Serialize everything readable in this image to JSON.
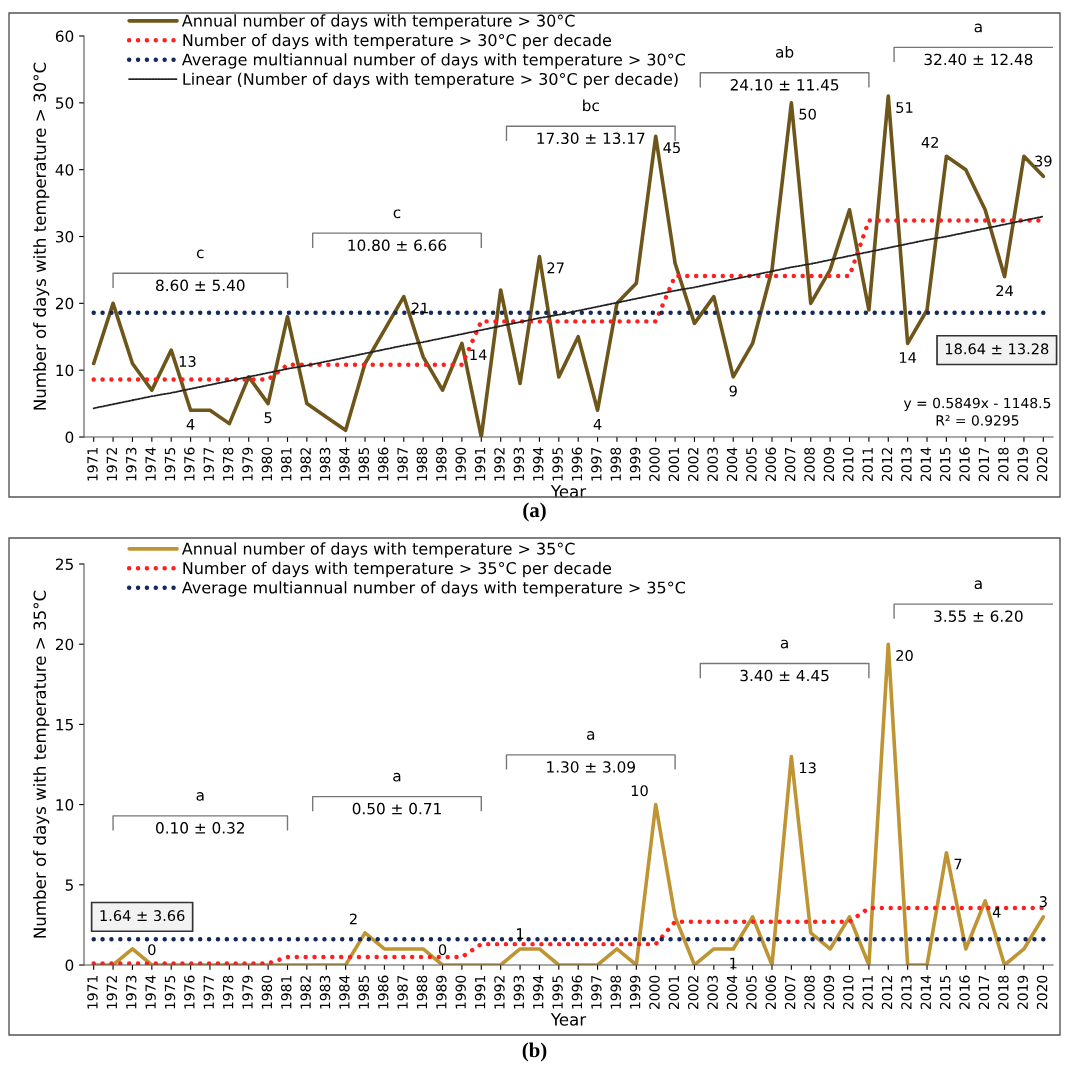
{
  "chart_data": [
    {
      "type": "line",
      "xlabel": "Year",
      "ylabel": "Number of days with temperature > 30°C",
      "ylim": [
        0,
        60
      ],
      "yticks": [
        0,
        10,
        20,
        30,
        40,
        50,
        60
      ],
      "legend": "top left",
      "grid": false,
      "marker": "none",
      "categories": [
        "1971",
        "1972",
        "1973",
        "1974",
        "1975",
        "1976",
        "1977",
        "1978",
        "1979",
        "1980",
        "1981",
        "1982",
        "1983",
        "1984",
        "1985",
        "1986",
        "1987",
        "1988",
        "1989",
        "1990",
        "1991",
        "1992",
        "1993",
        "1994",
        "1995",
        "1996",
        "1997",
        "1998",
        "1999",
        "2000",
        "2001",
        "2002",
        "2003",
        "2004",
        "2005",
        "2006",
        "2007",
        "2008",
        "2009",
        "2010",
        "2011",
        "2012",
        "2013",
        "2014",
        "2015",
        "2016",
        "2017",
        "2018",
        "2019",
        "2020"
      ],
      "series": [
        {
          "name": "Annual number of days with temperature > 30°C",
          "color": "#6e5519",
          "line_style": "solid",
          "values": [
            11,
            20,
            11,
            7,
            13,
            4,
            4,
            2,
            9,
            5,
            18,
            5,
            3,
            1,
            11,
            16,
            21,
            12,
            7,
            14,
            0,
            22,
            8,
            27,
            9,
            15,
            4,
            20,
            23,
            45,
            26,
            17,
            21,
            9,
            14,
            25,
            50,
            20,
            25,
            34,
            19,
            51,
            14,
            19,
            42,
            40,
            34,
            24,
            42,
            39
          ],
          "value_labels": [
            null,
            null,
            null,
            null,
            "13",
            "4",
            null,
            null,
            null,
            "5",
            null,
            null,
            null,
            null,
            null,
            null,
            "21",
            null,
            null,
            "14",
            null,
            null,
            null,
            "27",
            null,
            null,
            "4",
            null,
            null,
            "45",
            null,
            null,
            null,
            "9",
            null,
            null,
            "50",
            null,
            null,
            null,
            null,
            "51",
            "14",
            null,
            "42",
            null,
            null,
            "24",
            null,
            "39"
          ]
        },
        {
          "name": "Number of days with temperature > 30°C per decade",
          "color": "#ff1f1f",
          "line_style": "dotted",
          "values": [
            8.6,
            8.6,
            8.6,
            8.6,
            8.6,
            8.6,
            8.6,
            8.6,
            8.6,
            8.6,
            10.8,
            10.8,
            10.8,
            10.8,
            10.8,
            10.8,
            10.8,
            10.8,
            10.8,
            10.8,
            17.3,
            17.3,
            17.3,
            17.3,
            17.3,
            17.3,
            17.3,
            17.3,
            17.3,
            17.3,
            24.1,
            24.1,
            24.1,
            24.1,
            24.1,
            24.1,
            24.1,
            24.1,
            24.1,
            24.1,
            32.4,
            32.4,
            32.4,
            32.4,
            32.4,
            32.4,
            32.4,
            32.4,
            32.4,
            32.4
          ]
        },
        {
          "name": "Average multiannual number of days with temperature > 30°C",
          "color": "#14285a",
          "line_style": "dotted",
          "values": [
            18.6,
            18.6,
            18.6,
            18.6,
            18.6,
            18.6,
            18.6,
            18.6,
            18.6,
            18.6,
            18.6,
            18.6,
            18.6,
            18.6,
            18.6,
            18.6,
            18.6,
            18.6,
            18.6,
            18.6,
            18.6,
            18.6,
            18.6,
            18.6,
            18.6,
            18.6,
            18.6,
            18.6,
            18.6,
            18.6,
            18.6,
            18.6,
            18.6,
            18.6,
            18.6,
            18.6,
            18.6,
            18.6,
            18.6,
            18.6,
            18.6,
            18.6,
            18.6,
            18.6,
            18.6,
            18.6,
            18.6,
            18.6,
            18.6,
            18.6
          ]
        },
        {
          "name": "Linear (Number of days with temperature > 30°C per decade)",
          "color": "#222222",
          "line_style": "dotted",
          "values": [
            4.3,
            4.9,
            5.5,
            6.1,
            6.6,
            7.2,
            7.8,
            8.4,
            9.0,
            9.6,
            10.2,
            10.7,
            11.3,
            11.9,
            12.5,
            13.1,
            13.7,
            14.2,
            14.8,
            15.4,
            16.0,
            16.6,
            17.2,
            17.8,
            18.3,
            18.9,
            19.5,
            20.1,
            20.7,
            21.3,
            21.9,
            22.4,
            23.0,
            23.6,
            24.2,
            24.8,
            25.4,
            25.9,
            26.5,
            27.1,
            27.7,
            28.3,
            28.9,
            29.5,
            30.0,
            30.6,
            31.2,
            31.8,
            32.4,
            33.0
          ]
        }
      ],
      "annotations": [
        "c",
        "8.60 ± 5.40",
        "c",
        "10.80 ± 6.66",
        "bc",
        "17.30 ± 13.17",
        "ab",
        "24.10 ± 11.45",
        "a",
        "32.40 ± 12.48",
        "18.64 ± 13.28",
        "y = 0.5849x - 1148.5",
        "R² = 0.9295",
        "(a)"
      ]
    },
    {
      "type": "line",
      "xlabel": "Year",
      "ylabel": "Number of days with temperature > 35°C",
      "ylim": [
        0,
        25
      ],
      "yticks": [
        0,
        5,
        10,
        15,
        20,
        25
      ],
      "legend": "top left",
      "grid": false,
      "marker": "none",
      "categories": [
        "1971",
        "1972",
        "1973",
        "1974",
        "1975",
        "1976",
        "1977",
        "1978",
        "1979",
        "1980",
        "1981",
        "1982",
        "1983",
        "1984",
        "1985",
        "1986",
        "1987",
        "1988",
        "1989",
        "1990",
        "1991",
        "1992",
        "1993",
        "1994",
        "1995",
        "1996",
        "1997",
        "1998",
        "1999",
        "2000",
        "2001",
        "2002",
        "2003",
        "2004",
        "2005",
        "2006",
        "2007",
        "2008",
        "2009",
        "2010",
        "2011",
        "2012",
        "2013",
        "2014",
        "2015",
        "2016",
        "2017",
        "2018",
        "2019",
        "2020"
      ],
      "series": [
        {
          "name": "Annual number of days with temperature > 35°C",
          "color": "#bf9433",
          "line_style": "solid",
          "values": [
            0,
            0,
            1,
            0,
            0,
            0,
            0,
            0,
            0,
            0,
            0,
            0,
            0,
            0,
            2,
            1,
            1,
            1,
            0,
            0,
            0,
            0,
            1,
            1,
            0,
            0,
            0,
            1,
            0,
            10,
            3,
            0,
            1,
            1,
            3,
            0,
            13,
            2,
            1,
            3,
            0,
            20,
            0,
            0,
            7,
            1,
            4,
            0,
            1,
            3
          ],
          "value_labels": [
            null,
            null,
            null,
            "0",
            null,
            null,
            null,
            null,
            null,
            null,
            null,
            null,
            null,
            null,
            "2",
            null,
            null,
            null,
            "0",
            null,
            null,
            null,
            "1",
            null,
            null,
            null,
            null,
            null,
            null,
            "10",
            null,
            null,
            null,
            "1",
            null,
            null,
            "13",
            null,
            null,
            null,
            null,
            "20",
            null,
            null,
            "7",
            null,
            "4",
            null,
            null,
            "3"
          ]
        },
        {
          "name": "Number of days with temperature > 35°C per decade",
          "color": "#ff1f1f",
          "line_style": "dotted",
          "values": [
            0.1,
            0.1,
            0.1,
            0.1,
            0.1,
            0.1,
            0.1,
            0.1,
            0.1,
            0.1,
            0.5,
            0.5,
            0.5,
            0.5,
            0.5,
            0.5,
            0.5,
            0.5,
            0.5,
            0.5,
            1.3,
            1.3,
            1.3,
            1.3,
            1.3,
            1.3,
            1.3,
            1.3,
            1.3,
            1.3,
            2.7,
            2.7,
            2.7,
            2.7,
            2.7,
            2.7,
            2.7,
            2.7,
            2.7,
            2.7,
            3.55,
            3.55,
            3.55,
            3.55,
            3.55,
            3.55,
            3.55,
            3.55,
            3.55,
            3.55
          ]
        },
        {
          "name": "Average multiannual number of days with temperature > 35°C",
          "color": "#14285a",
          "line_style": "dotted",
          "values": [
            1.6,
            1.6,
            1.6,
            1.6,
            1.6,
            1.6,
            1.6,
            1.6,
            1.6,
            1.6,
            1.6,
            1.6,
            1.6,
            1.6,
            1.6,
            1.6,
            1.6,
            1.6,
            1.6,
            1.6,
            1.6,
            1.6,
            1.6,
            1.6,
            1.6,
            1.6,
            1.6,
            1.6,
            1.6,
            1.6,
            1.6,
            1.6,
            1.6,
            1.6,
            1.6,
            1.6,
            1.6,
            1.6,
            1.6,
            1.6,
            1.6,
            1.6,
            1.6,
            1.6,
            1.6,
            1.6,
            1.6,
            1.6,
            1.6,
            1.6
          ]
        }
      ],
      "annotations": [
        "a",
        "0.10 ± 0.32",
        "a",
        "0.50 ± 0.71",
        "a",
        "1.30 ± 3.09",
        "a",
        "3.40 ± 4.45",
        "a",
        "3.55 ± 6.20",
        "1.64 ± 3.66",
        "(b)"
      ]
    }
  ]
}
